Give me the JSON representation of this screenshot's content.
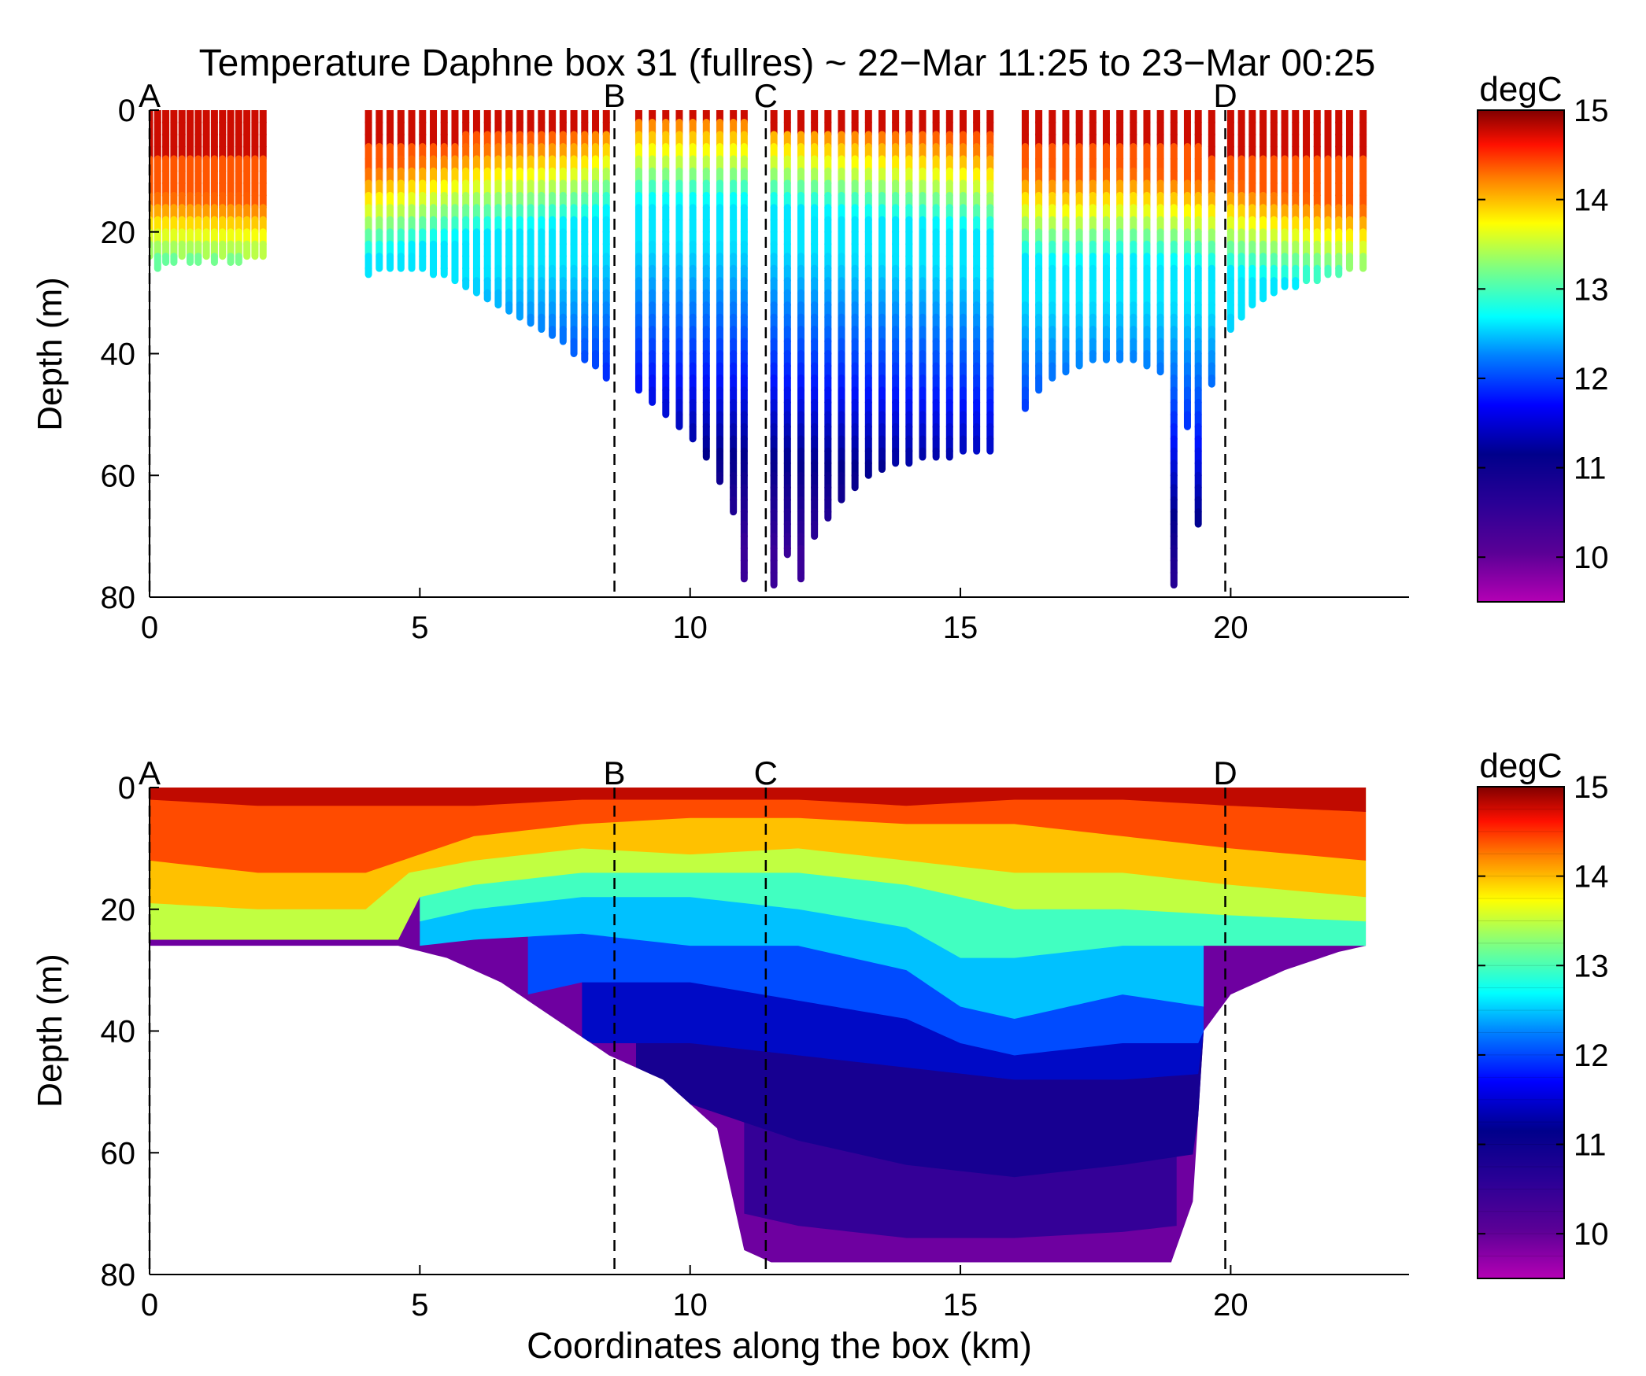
{
  "figure": {
    "title": "Temperature Daphne box 31 (fullres) ~ 22−Mar 11:25 to 23−Mar 00:25",
    "colormap": [
      "#8b008b",
      "#30009a",
      "#00008b",
      "#0000ff",
      "#007fff",
      "#00ffff",
      "#7fff7f",
      "#ffff00",
      "#ff7f00",
      "#ff0000",
      "#800000"
    ]
  },
  "chart_data": [
    {
      "type": "scatter",
      "panel": "top",
      "description_type": "profile section",
      "title": "Temperature Daphne box 31 (fullres) ~ 22−Mar 11:25 to 23−Mar 00:25",
      "xlabel": "",
      "ylabel": "Depth (m)",
      "xlim": [
        0,
        23.3
      ],
      "ylim": [
        80,
        0
      ],
      "xticks": [
        0,
        5,
        10,
        15,
        20
      ],
      "yticks": [
        0,
        20,
        40,
        60,
        80
      ],
      "y_reversed": true,
      "colorbar": {
        "label": "degC",
        "range": [
          9.5,
          15
        ],
        "ticks": [
          10,
          11,
          12,
          13,
          14,
          15
        ]
      },
      "markers": [
        {
          "label": "A",
          "x": 0
        },
        {
          "label": "B",
          "x": 8.6
        },
        {
          "label": "C",
          "x": 11.4
        },
        {
          "label": "D",
          "x": 19.9
        }
      ],
      "stratification": {
        "x": [
          0,
          2.2,
          4.0,
          5,
          6,
          7,
          8,
          8.6,
          9,
          10,
          11,
          12,
          13,
          14,
          15,
          15.6,
          16.2,
          17,
          18,
          19,
          19.9,
          21,
          22.5
        ],
        "thermocline_depth_m": [
          20,
          21,
          16,
          14,
          12,
          11,
          10,
          8,
          7,
          7,
          7,
          8,
          9,
          10,
          11,
          12,
          16,
          17,
          16,
          17,
          18,
          20,
          22
        ]
      },
      "profiles": [
        {
          "x": 0.0,
          "max_depth": 24
        },
        {
          "x": 0.15,
          "max_depth": 26
        },
        {
          "x": 0.3,
          "max_depth": 25
        },
        {
          "x": 0.45,
          "max_depth": 25
        },
        {
          "x": 0.6,
          "max_depth": 24
        },
        {
          "x": 0.75,
          "max_depth": 25
        },
        {
          "x": 0.9,
          "max_depth": 25
        },
        {
          "x": 1.05,
          "max_depth": 24
        },
        {
          "x": 1.2,
          "max_depth": 25
        },
        {
          "x": 1.35,
          "max_depth": 24
        },
        {
          "x": 1.5,
          "max_depth": 25
        },
        {
          "x": 1.65,
          "max_depth": 25
        },
        {
          "x": 1.8,
          "max_depth": 24
        },
        {
          "x": 1.95,
          "max_depth": 24
        },
        {
          "x": 2.1,
          "max_depth": 24
        },
        {
          "x": 4.05,
          "max_depth": 27
        },
        {
          "x": 4.25,
          "max_depth": 26
        },
        {
          "x": 4.45,
          "max_depth": 26
        },
        {
          "x": 4.65,
          "max_depth": 26
        },
        {
          "x": 4.85,
          "max_depth": 26
        },
        {
          "x": 5.05,
          "max_depth": 26
        },
        {
          "x": 5.25,
          "max_depth": 27
        },
        {
          "x": 5.45,
          "max_depth": 27
        },
        {
          "x": 5.65,
          "max_depth": 28
        },
        {
          "x": 5.85,
          "max_depth": 29
        },
        {
          "x": 6.05,
          "max_depth": 30
        },
        {
          "x": 6.25,
          "max_depth": 31
        },
        {
          "x": 6.45,
          "max_depth": 32
        },
        {
          "x": 6.65,
          "max_depth": 33
        },
        {
          "x": 6.85,
          "max_depth": 34
        },
        {
          "x": 7.05,
          "max_depth": 35
        },
        {
          "x": 7.25,
          "max_depth": 36
        },
        {
          "x": 7.45,
          "max_depth": 37
        },
        {
          "x": 7.65,
          "max_depth": 38
        },
        {
          "x": 7.85,
          "max_depth": 40
        },
        {
          "x": 8.05,
          "max_depth": 41
        },
        {
          "x": 8.25,
          "max_depth": 42
        },
        {
          "x": 8.45,
          "max_depth": 44
        },
        {
          "x": 9.05,
          "max_depth": 46
        },
        {
          "x": 9.3,
          "max_depth": 48
        },
        {
          "x": 9.55,
          "max_depth": 50
        },
        {
          "x": 9.8,
          "max_depth": 52
        },
        {
          "x": 10.05,
          "max_depth": 54
        },
        {
          "x": 10.3,
          "max_depth": 57
        },
        {
          "x": 10.55,
          "max_depth": 61
        },
        {
          "x": 10.8,
          "max_depth": 66
        },
        {
          "x": 11.0,
          "max_depth": 77
        },
        {
          "x": 11.55,
          "max_depth": 78
        },
        {
          "x": 11.8,
          "max_depth": 73
        },
        {
          "x": 12.05,
          "max_depth": 77
        },
        {
          "x": 12.3,
          "max_depth": 70
        },
        {
          "x": 12.55,
          "max_depth": 67
        },
        {
          "x": 12.8,
          "max_depth": 64
        },
        {
          "x": 13.05,
          "max_depth": 62
        },
        {
          "x": 13.3,
          "max_depth": 60
        },
        {
          "x": 13.55,
          "max_depth": 59
        },
        {
          "x": 13.8,
          "max_depth": 58
        },
        {
          "x": 14.05,
          "max_depth": 58
        },
        {
          "x": 14.3,
          "max_depth": 57
        },
        {
          "x": 14.55,
          "max_depth": 57
        },
        {
          "x": 14.8,
          "max_depth": 57
        },
        {
          "x": 15.05,
          "max_depth": 56
        },
        {
          "x": 15.3,
          "max_depth": 56
        },
        {
          "x": 15.55,
          "max_depth": 56
        },
        {
          "x": 16.2,
          "max_depth": 49
        },
        {
          "x": 16.45,
          "max_depth": 46
        },
        {
          "x": 16.7,
          "max_depth": 44
        },
        {
          "x": 16.95,
          "max_depth": 43
        },
        {
          "x": 17.2,
          "max_depth": 42
        },
        {
          "x": 17.45,
          "max_depth": 41
        },
        {
          "x": 17.7,
          "max_depth": 41
        },
        {
          "x": 17.95,
          "max_depth": 41
        },
        {
          "x": 18.2,
          "max_depth": 41
        },
        {
          "x": 18.45,
          "max_depth": 42
        },
        {
          "x": 18.7,
          "max_depth": 43
        },
        {
          "x": 18.95,
          "max_depth": 78
        },
        {
          "x": 19.2,
          "max_depth": 52
        },
        {
          "x": 19.4,
          "max_depth": 68
        },
        {
          "x": 19.65,
          "max_depth": 45
        },
        {
          "x": 20.0,
          "max_depth": 36
        },
        {
          "x": 20.2,
          "max_depth": 34
        },
        {
          "x": 20.4,
          "max_depth": 32
        },
        {
          "x": 20.6,
          "max_depth": 31
        },
        {
          "x": 20.8,
          "max_depth": 30
        },
        {
          "x": 21.0,
          "max_depth": 29
        },
        {
          "x": 21.2,
          "max_depth": 29
        },
        {
          "x": 21.4,
          "max_depth": 28
        },
        {
          "x": 21.6,
          "max_depth": 28
        },
        {
          "x": 21.8,
          "max_depth": 27
        },
        {
          "x": 22.0,
          "max_depth": 27
        },
        {
          "x": 22.2,
          "max_depth": 26
        },
        {
          "x": 22.45,
          "max_depth": 26
        }
      ]
    },
    {
      "type": "heatmap",
      "panel": "bottom",
      "description_type": "filled contour section",
      "title": "",
      "xlabel": "Coordinates along the box (km)",
      "ylabel": "Depth (m)",
      "xlim": [
        0,
        23.3
      ],
      "ylim": [
        80,
        0
      ],
      "xticks": [
        0,
        5,
        10,
        15,
        20
      ],
      "yticks": [
        0,
        20,
        40,
        60,
        80
      ],
      "y_reversed": true,
      "colorbar": {
        "label": "degC",
        "range": [
          9.5,
          15
        ],
        "ticks": [
          10,
          11,
          12,
          13,
          14,
          15
        ],
        "levels": 22
      },
      "markers": [
        {
          "label": "A",
          "x": 0
        },
        {
          "label": "B",
          "x": 8.6
        },
        {
          "label": "C",
          "x": 11.4
        },
        {
          "label": "D",
          "x": 19.9
        }
      ],
      "bottom_boundary": {
        "x": [
          0,
          4.6,
          5.5,
          6.5,
          7.5,
          8.5,
          9.5,
          10.5,
          11.0,
          11.5,
          12,
          14,
          16,
          18,
          18.9,
          19.3,
          19.5,
          20,
          21,
          22,
          22.5
        ],
        "depth": [
          26,
          26,
          28,
          32,
          38,
          44,
          48,
          56,
          76,
          78,
          78,
          78,
          78,
          78,
          78,
          68,
          40,
          34,
          30,
          27,
          26
        ]
      },
      "isotherms": [
        {
          "temp": 14.5,
          "x": [
            0,
            2,
            4,
            6,
            8,
            10,
            12,
            14,
            16,
            18,
            20,
            22.5
          ],
          "depth": [
            2,
            3,
            3,
            3,
            2,
            2,
            2,
            3,
            2,
            2,
            3,
            4
          ]
        },
        {
          "temp": 14.0,
          "x": [
            0,
            2,
            4,
            6,
            8,
            10,
            12,
            14,
            16,
            18,
            20,
            22.5
          ],
          "depth": [
            12,
            14,
            14,
            8,
            6,
            5,
            5,
            6,
            6,
            8,
            10,
            12
          ]
        },
        {
          "temp": 13.5,
          "x": [
            0,
            2,
            4,
            4.8,
            6,
            8,
            10,
            12,
            14,
            16,
            18,
            20,
            22.5
          ],
          "depth": [
            19,
            20,
            20,
            14,
            12,
            10,
            11,
            10,
            12,
            14,
            14,
            16,
            18
          ]
        },
        {
          "temp": 13.0,
          "x": [
            0,
            4.6,
            5,
            6,
            8,
            10,
            12,
            14,
            16,
            18,
            20,
            22.5
          ],
          "depth": [
            25,
            25,
            18,
            16,
            14,
            14,
            14,
            16,
            20,
            20,
            21,
            22
          ]
        },
        {
          "temp": 12.5,
          "x": [
            5,
            6,
            8,
            10,
            12,
            14,
            15,
            16,
            18,
            20,
            22.5
          ],
          "depth": [
            22,
            20,
            18,
            18,
            20,
            23,
            28,
            28,
            26,
            26,
            26
          ]
        },
        {
          "temp": 12.0,
          "x": [
            5,
            6,
            8,
            10,
            12,
            14,
            15,
            16,
            18,
            19.5
          ],
          "depth": [
            26,
            25,
            24,
            26,
            26,
            30,
            36,
            38,
            34,
            36
          ]
        },
        {
          "temp": 11.5,
          "x": [
            7,
            8,
            10,
            12,
            14,
            15,
            16,
            18,
            19.5
          ],
          "depth": [
            34,
            32,
            32,
            35,
            38,
            42,
            44,
            42,
            42
          ]
        },
        {
          "temp": 11.0,
          "x": [
            8,
            10,
            12,
            14,
            16,
            18,
            19.5
          ],
          "depth": [
            42,
            42,
            44,
            46,
            48,
            48,
            47
          ]
        },
        {
          "temp": 10.5,
          "x": [
            9,
            10,
            12,
            14,
            16,
            18,
            19.5
          ],
          "depth": [
            48,
            52,
            58,
            62,
            64,
            62,
            60
          ]
        },
        {
          "temp": 10.2,
          "x": [
            11,
            12,
            14,
            16,
            18,
            19
          ],
          "depth": [
            70,
            72,
            74,
            74,
            73,
            72
          ]
        }
      ]
    }
  ]
}
